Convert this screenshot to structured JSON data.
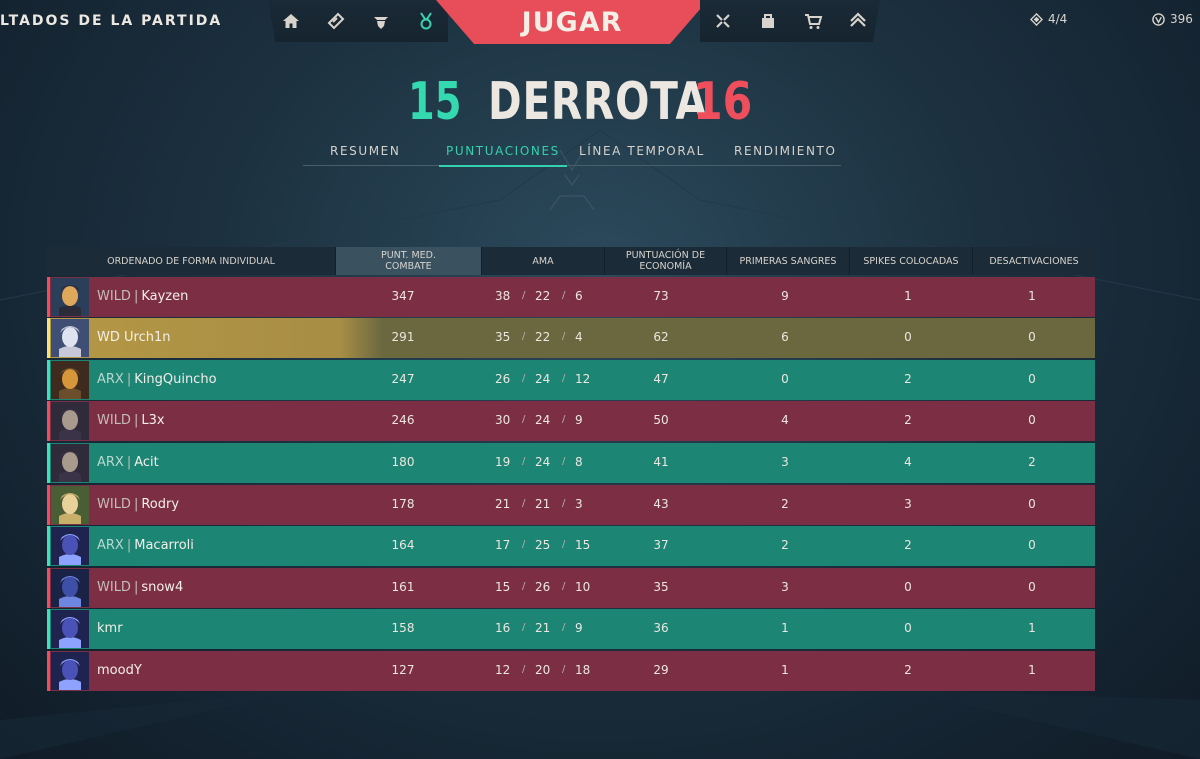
{
  "topbar": {
    "left_title": "LTADOS DE LA PARTIDA",
    "play_label": "JUGAR",
    "nav_left_icons": [
      "home-icon",
      "career-icon",
      "agents-icon",
      "battlepass-icon"
    ],
    "nav_right_icons": [
      "collection-icon",
      "store-icon",
      "cart-icon",
      "rank-icon"
    ],
    "radianite_value": "4/4",
    "vp_value": "396"
  },
  "score": {
    "team_score": "15",
    "result": "DERROTA",
    "enemy_score": "16",
    "team_color": "#35d9b0",
    "enemy_color": "#ef4f5d"
  },
  "tabs": [
    {
      "label": "RESUMEN",
      "active": false
    },
    {
      "label": "PUNTUACIONES",
      "active": true
    },
    {
      "label": "LÍNEA TEMPORAL",
      "active": false
    },
    {
      "label": "RENDIMIENTO",
      "active": false
    }
  ],
  "table": {
    "headers": {
      "player": "ORDENADO DE FORMA INDIVIDUAL",
      "acs_line1": "PUNT. MED.",
      "acs_line2": "COMBATE",
      "kda": "AMA",
      "econ_line1": "PUNTUACIÓN DE",
      "econ_line2": "ECONOMÍA",
      "first_bloods": "PRIMERAS SANGRES",
      "plants": "SPIKES COLOCADAS",
      "defuses": "DESACTIVACIONES"
    },
    "rows": [
      {
        "team": "red",
        "tag": "WILD",
        "name": "Kayzen",
        "acs": "347",
        "k": "38",
        "d": "22",
        "a": "6",
        "econ": "73",
        "fb": "9",
        "plants": "1",
        "defuses": "1",
        "agent": "neon-portrait-icon"
      },
      {
        "team": "self",
        "tag": "",
        "name": "WD Urch1n",
        "acs": "291",
        "k": "35",
        "d": "22",
        "a": "4",
        "econ": "62",
        "fb": "6",
        "plants": "0",
        "defuses": "0",
        "agent": "jett-portrait-icon"
      },
      {
        "team": "green",
        "tag": "ARX",
        "name": "KingQuincho",
        "acs": "247",
        "k": "26",
        "d": "24",
        "a": "12",
        "econ": "47",
        "fb": "0",
        "plants": "2",
        "defuses": "0",
        "agent": "raze-portrait-icon"
      },
      {
        "team": "red",
        "tag": "WILD",
        "name": "L3x",
        "acs": "246",
        "k": "30",
        "d": "24",
        "a": "9",
        "econ": "50",
        "fb": "4",
        "plants": "2",
        "defuses": "0",
        "agent": "fade-portrait-icon"
      },
      {
        "team": "green",
        "tag": "ARX",
        "name": "Acit",
        "acs": "180",
        "k": "19",
        "d": "24",
        "a": "8",
        "econ": "41",
        "fb": "3",
        "plants": "4",
        "defuses": "2",
        "agent": "fade-portrait-icon"
      },
      {
        "team": "red",
        "tag": "WILD",
        "name": "Rodry",
        "acs": "178",
        "k": "21",
        "d": "21",
        "a": "3",
        "econ": "43",
        "fb": "2",
        "plants": "3",
        "defuses": "0",
        "agent": "skye-portrait-icon"
      },
      {
        "team": "green",
        "tag": "ARX",
        "name": "Macarroli",
        "acs": "164",
        "k": "17",
        "d": "25",
        "a": "15",
        "econ": "37",
        "fb": "2",
        "plants": "2",
        "defuses": "0",
        "agent": "omen-portrait-icon"
      },
      {
        "team": "red",
        "tag": "WILD",
        "name": "snow4",
        "acs": "161",
        "k": "15",
        "d": "26",
        "a": "10",
        "econ": "35",
        "fb": "3",
        "plants": "0",
        "defuses": "0",
        "agent": "yoru-portrait-icon"
      },
      {
        "team": "green",
        "tag": "",
        "name": "kmr",
        "acs": "158",
        "k": "16",
        "d": "21",
        "a": "9",
        "econ": "36",
        "fb": "1",
        "plants": "0",
        "defuses": "1",
        "agent": "omen-portrait-icon"
      },
      {
        "team": "red",
        "tag": "",
        "name": "moodY",
        "acs": "127",
        "k": "12",
        "d": "20",
        "a": "18",
        "econ": "29",
        "fb": "1",
        "plants": "2",
        "defuses": "1",
        "agent": "omen-portrait-icon"
      }
    ]
  }
}
